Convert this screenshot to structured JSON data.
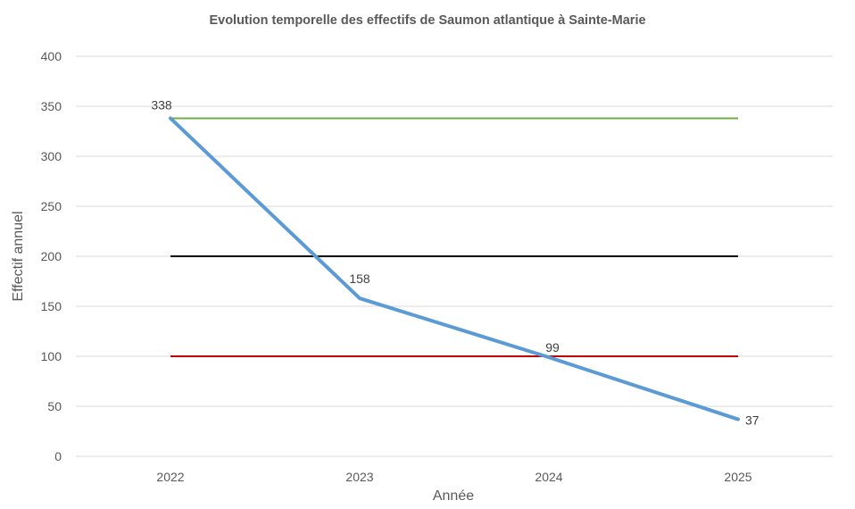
{
  "chart_data": {
    "type": "line",
    "title": "Evolution temporelle des effectifs de Saumon atlantique à Sainte-Marie",
    "xlabel": "Année",
    "ylabel": "Effectif annuel",
    "categories": [
      "2022",
      "2023",
      "2024",
      "2025"
    ],
    "ylim": [
      0,
      400
    ],
    "yticks": [
      0,
      50,
      100,
      150,
      200,
      250,
      300,
      350,
      400
    ],
    "grid": true,
    "series": [
      {
        "name": "Effectif annuel",
        "values": [
          338,
          158,
          99,
          37
        ],
        "color": "#5B9BD5",
        "data_labels": [
          "338",
          "158",
          "99",
          "37"
        ]
      }
    ],
    "reference_lines": [
      {
        "value": 338,
        "color": "#70AD47"
      },
      {
        "value": 200,
        "color": "#000000"
      },
      {
        "value": 100,
        "color": "#C00000"
      }
    ]
  }
}
